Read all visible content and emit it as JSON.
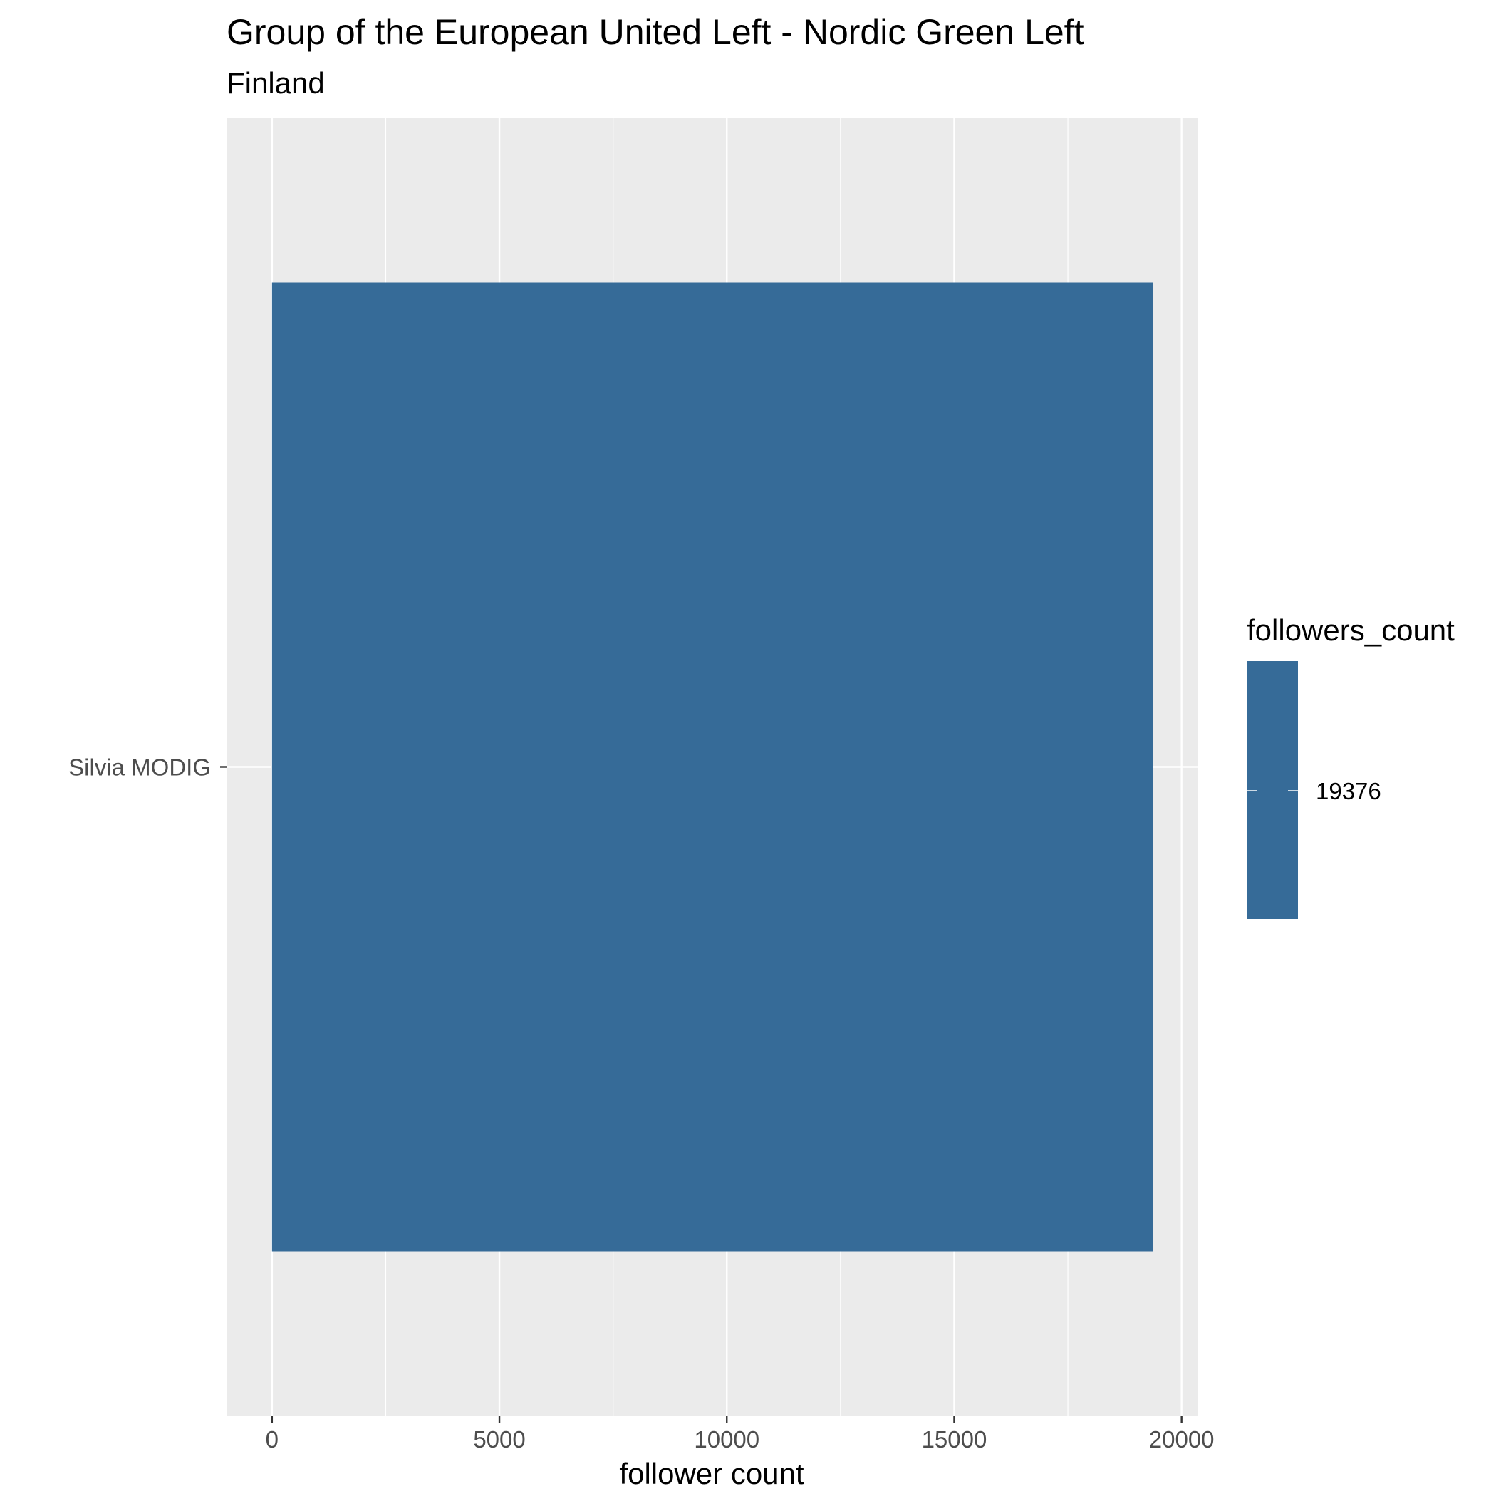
{
  "chart_data": {
    "type": "bar",
    "orientation": "horizontal",
    "title": "Group of the European United Left - Nordic Green Left",
    "subtitle": "Finland",
    "xlabel": "follower count",
    "ylabel": "",
    "categories": [
      "Silvia MODIG"
    ],
    "values": [
      19376
    ],
    "xlim": [
      -1000,
      20350
    ],
    "xticks": [
      0,
      5000,
      10000,
      15000,
      20000
    ],
    "xtick_labels": [
      "0",
      "5000",
      "10000",
      "15000",
      "20000"
    ],
    "grid": true,
    "legend": {
      "title": "followers_count",
      "position": "right",
      "entries": [
        {
          "label": "19376"
        }
      ]
    },
    "colors": {
      "bar": "#366b98",
      "panel_background": "#ebebeb",
      "grid": "#ffffff"
    }
  }
}
